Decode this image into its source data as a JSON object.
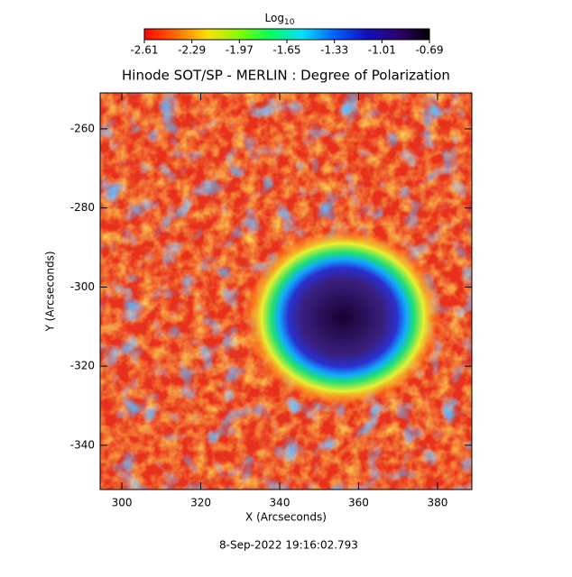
{
  "chart_data": {
    "type": "heatmap",
    "title": "Hinode SOT/SP - MERLIN : Degree of Polarization",
    "x_label": "X (Arcseconds)",
    "y_label": "Y (Arcseconds)",
    "xlim": [
      294.5,
      388.7
    ],
    "xticks": [
      300,
      320,
      340,
      360,
      380
    ],
    "ylim": [
      -351.2,
      -250.9
    ],
    "yticks": [
      -340,
      -320,
      -300,
      -280,
      -260
    ],
    "colorbar": {
      "label": "Log",
      "label_subscript": "10",
      "lim": [
        -2.61,
        -0.69
      ],
      "ticks": [
        -2.61,
        -2.29,
        -1.97,
        -1.65,
        -1.33,
        -1.01,
        -0.69
      ],
      "colormap": [
        "#ff0000",
        "#ff6a00",
        "#ffe000",
        "#7fff00",
        "#00ff60",
        "#00e0ff",
        "#0060ff",
        "#1010c0",
        "#300070",
        "#000000"
      ]
    },
    "footer": "8-Sep-2022 19:16:02.793"
  }
}
